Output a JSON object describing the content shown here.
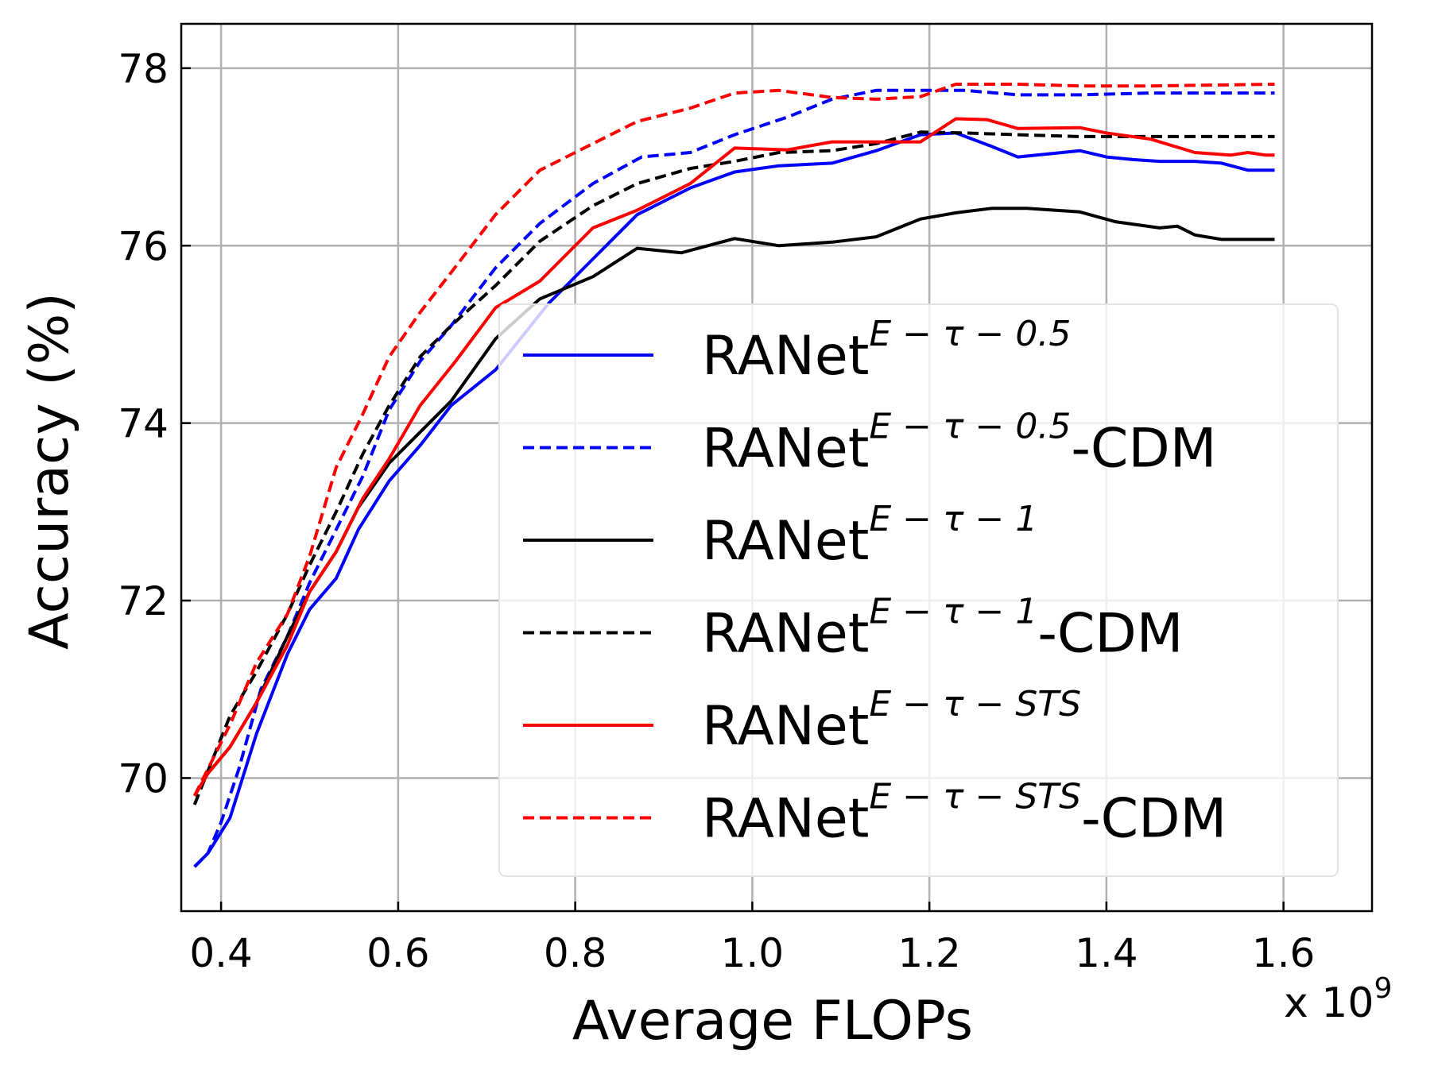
{
  "chart_data": {
    "type": "line",
    "title": "",
    "xlabel": "Average FLOPs",
    "ylabel": "Accuracy (%)",
    "x_offset_label": "x 10",
    "x_offset_exponent": "9",
    "xlim": [
      0.355,
      1.7
    ],
    "ylim": [
      68.5,
      78.5
    ],
    "x_ticks": [
      0.4,
      0.6,
      0.8,
      1.0,
      1.2,
      1.4,
      1.6
    ],
    "x_tick_labels": [
      "0.4",
      "0.6",
      "0.8",
      "1.0",
      "1.2",
      "1.4",
      "1.6"
    ],
    "y_ticks": [
      70,
      72,
      74,
      76,
      78
    ],
    "y_tick_labels": [
      "70",
      "72",
      "74",
      "76",
      "78"
    ],
    "grid": true,
    "legend_position": "bottom-right",
    "series": [
      {
        "name": "RANet",
        "superscript": "E − τ − 0.5",
        "suffix": "",
        "color": "#0000ff",
        "dash": "solid",
        "points": [
          [
            0.37,
            69.0
          ],
          [
            0.385,
            69.15
          ],
          [
            0.41,
            69.55
          ],
          [
            0.44,
            70.5
          ],
          [
            0.475,
            71.4
          ],
          [
            0.5,
            71.9
          ],
          [
            0.53,
            72.25
          ],
          [
            0.555,
            72.8
          ],
          [
            0.59,
            73.35
          ],
          [
            0.625,
            73.75
          ],
          [
            0.66,
            74.2
          ],
          [
            0.71,
            74.6
          ],
          [
            0.77,
            75.35
          ],
          [
            0.82,
            75.85
          ],
          [
            0.87,
            76.35
          ],
          [
            0.93,
            76.65
          ],
          [
            0.98,
            76.83
          ],
          [
            1.03,
            76.9
          ],
          [
            1.09,
            76.93
          ],
          [
            1.14,
            77.07
          ],
          [
            1.19,
            77.25
          ],
          [
            1.23,
            77.27
          ],
          [
            1.27,
            77.12
          ],
          [
            1.3,
            77.0
          ],
          [
            1.37,
            77.07
          ],
          [
            1.4,
            77.0
          ],
          [
            1.43,
            76.97
          ],
          [
            1.46,
            76.95
          ],
          [
            1.5,
            76.95
          ],
          [
            1.53,
            76.93
          ],
          [
            1.56,
            76.85
          ],
          [
            1.59,
            76.85
          ]
        ]
      },
      {
        "name": "RANet",
        "superscript": "E − τ − 0.5",
        "suffix": "-CDM",
        "color": "#0000ff",
        "dash": "dashed",
        "points": [
          [
            0.37,
            69.0
          ],
          [
            0.385,
            69.15
          ],
          [
            0.4,
            69.5
          ],
          [
            0.42,
            70.1
          ],
          [
            0.445,
            71.0
          ],
          [
            0.475,
            71.6
          ],
          [
            0.5,
            72.2
          ],
          [
            0.53,
            72.8
          ],
          [
            0.56,
            73.4
          ],
          [
            0.59,
            74.15
          ],
          [
            0.625,
            74.7
          ],
          [
            0.66,
            75.1
          ],
          [
            0.71,
            75.75
          ],
          [
            0.76,
            76.25
          ],
          [
            0.82,
            76.7
          ],
          [
            0.875,
            77.0
          ],
          [
            0.93,
            77.05
          ],
          [
            0.98,
            77.25
          ],
          [
            1.04,
            77.45
          ],
          [
            1.09,
            77.65
          ],
          [
            1.14,
            77.75
          ],
          [
            1.2,
            77.75
          ],
          [
            1.24,
            77.75
          ],
          [
            1.3,
            77.7
          ],
          [
            1.37,
            77.7
          ],
          [
            1.45,
            77.72
          ],
          [
            1.59,
            77.72
          ]
        ]
      },
      {
        "name": "RANet",
        "superscript": "E − τ − 1",
        "suffix": "",
        "color": "#000000",
        "dash": "solid",
        "points": [
          [
            0.37,
            69.8
          ],
          [
            0.385,
            70.05
          ],
          [
            0.41,
            70.35
          ],
          [
            0.44,
            70.85
          ],
          [
            0.475,
            71.6
          ],
          [
            0.5,
            72.1
          ],
          [
            0.53,
            72.55
          ],
          [
            0.555,
            73.05
          ],
          [
            0.59,
            73.55
          ],
          [
            0.625,
            73.9
          ],
          [
            0.66,
            74.25
          ],
          [
            0.71,
            74.95
          ],
          [
            0.76,
            75.4
          ],
          [
            0.82,
            75.65
          ],
          [
            0.87,
            75.97
          ],
          [
            0.92,
            75.92
          ],
          [
            0.98,
            76.08
          ],
          [
            1.03,
            76.0
          ],
          [
            1.09,
            76.04
          ],
          [
            1.14,
            76.1
          ],
          [
            1.19,
            76.3
          ],
          [
            1.23,
            76.37
          ],
          [
            1.27,
            76.42
          ],
          [
            1.31,
            76.42
          ],
          [
            1.37,
            76.38
          ],
          [
            1.41,
            76.27
          ],
          [
            1.46,
            76.2
          ],
          [
            1.48,
            76.22
          ],
          [
            1.5,
            76.12
          ],
          [
            1.53,
            76.07
          ],
          [
            1.56,
            76.07
          ],
          [
            1.59,
            76.07
          ]
        ]
      },
      {
        "name": "RANet",
        "superscript": "E − τ − 1",
        "suffix": "-CDM",
        "color": "#000000",
        "dash": "dashed",
        "points": [
          [
            0.37,
            69.7
          ],
          [
            0.39,
            70.2
          ],
          [
            0.41,
            70.7
          ],
          [
            0.44,
            71.2
          ],
          [
            0.475,
            71.85
          ],
          [
            0.5,
            72.4
          ],
          [
            0.53,
            73.0
          ],
          [
            0.56,
            73.65
          ],
          [
            0.59,
            74.2
          ],
          [
            0.625,
            74.75
          ],
          [
            0.66,
            75.1
          ],
          [
            0.71,
            75.55
          ],
          [
            0.76,
            76.05
          ],
          [
            0.82,
            76.45
          ],
          [
            0.87,
            76.7
          ],
          [
            0.93,
            76.87
          ],
          [
            0.98,
            76.95
          ],
          [
            1.03,
            77.05
          ],
          [
            1.09,
            77.07
          ],
          [
            1.14,
            77.15
          ],
          [
            1.19,
            77.28
          ],
          [
            1.24,
            77.27
          ],
          [
            1.3,
            77.25
          ],
          [
            1.37,
            77.23
          ],
          [
            1.45,
            77.23
          ],
          [
            1.59,
            77.23
          ]
        ]
      },
      {
        "name": "RANet",
        "superscript": "E − τ − STS",
        "suffix": "",
        "color": "#ff0000",
        "dash": "solid",
        "points": [
          [
            0.37,
            69.8
          ],
          [
            0.385,
            70.05
          ],
          [
            0.41,
            70.35
          ],
          [
            0.44,
            70.85
          ],
          [
            0.475,
            71.5
          ],
          [
            0.5,
            72.1
          ],
          [
            0.53,
            72.55
          ],
          [
            0.56,
            73.15
          ],
          [
            0.59,
            73.6
          ],
          [
            0.625,
            74.2
          ],
          [
            0.665,
            74.7
          ],
          [
            0.71,
            75.3
          ],
          [
            0.76,
            75.6
          ],
          [
            0.82,
            76.2
          ],
          [
            0.87,
            76.4
          ],
          [
            0.93,
            76.7
          ],
          [
            0.98,
            77.1
          ],
          [
            1.04,
            77.08
          ],
          [
            1.09,
            77.17
          ],
          [
            1.14,
            77.17
          ],
          [
            1.19,
            77.17
          ],
          [
            1.23,
            77.43
          ],
          [
            1.265,
            77.42
          ],
          [
            1.3,
            77.32
          ],
          [
            1.37,
            77.33
          ],
          [
            1.4,
            77.27
          ],
          [
            1.45,
            77.2
          ],
          [
            1.5,
            77.05
          ],
          [
            1.54,
            77.02
          ],
          [
            1.56,
            77.05
          ],
          [
            1.58,
            77.02
          ],
          [
            1.59,
            77.02
          ]
        ]
      },
      {
        "name": "RANet",
        "superscript": "E − τ − STS",
        "suffix": "-CDM",
        "color": "#ff0000",
        "dash": "dashed",
        "points": [
          [
            0.37,
            69.8
          ],
          [
            0.39,
            70.2
          ],
          [
            0.41,
            70.6
          ],
          [
            0.44,
            71.3
          ],
          [
            0.475,
            71.85
          ],
          [
            0.5,
            72.5
          ],
          [
            0.53,
            73.5
          ],
          [
            0.56,
            74.1
          ],
          [
            0.59,
            74.75
          ],
          [
            0.625,
            75.25
          ],
          [
            0.66,
            75.7
          ],
          [
            0.71,
            76.35
          ],
          [
            0.76,
            76.85
          ],
          [
            0.82,
            77.15
          ],
          [
            0.87,
            77.4
          ],
          [
            0.93,
            77.55
          ],
          [
            0.98,
            77.72
          ],
          [
            1.03,
            77.75
          ],
          [
            1.09,
            77.67
          ],
          [
            1.14,
            77.65
          ],
          [
            1.19,
            77.68
          ],
          [
            1.23,
            77.82
          ],
          [
            1.3,
            77.82
          ],
          [
            1.37,
            77.8
          ],
          [
            1.45,
            77.8
          ],
          [
            1.59,
            77.82
          ]
        ]
      }
    ]
  }
}
